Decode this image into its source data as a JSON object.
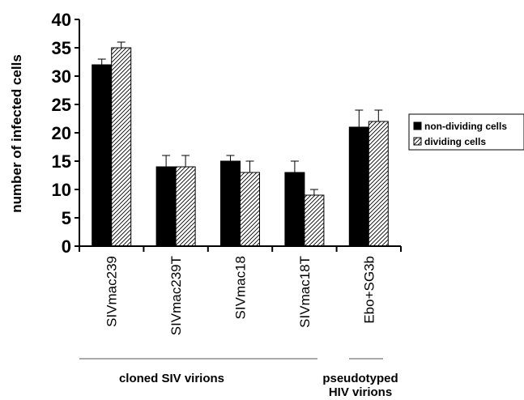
{
  "chart_data": {
    "type": "bar",
    "categories": [
      "SIVmac239",
      "SIVmac239T",
      "SIVmac18",
      "SIVmac18T",
      "Ebo+SG3b"
    ],
    "series": [
      {
        "name": "non-dividing cells",
        "values": [
          32,
          14,
          15,
          13,
          21
        ],
        "errors": [
          1,
          2,
          1,
          2,
          3
        ],
        "color": "#000000",
        "pattern": "solid"
      },
      {
        "name": "dividing cells",
        "values": [
          35,
          14,
          13,
          9,
          22
        ],
        "errors": [
          1,
          2,
          2,
          1,
          2
        ],
        "color": "#ffffff",
        "pattern": "diagonal-hatch"
      }
    ],
    "title": "",
    "xlabel": "",
    "ylabel": "number of infected cells",
    "ylim": [
      0,
      40
    ],
    "yticks": [
      "0",
      "5",
      "10",
      "15",
      "20",
      "25",
      "30",
      "35",
      "40"
    ],
    "grid": false,
    "legend": "right",
    "groups": [
      {
        "label": "cloned SIV virions",
        "categories": [
          "SIVmac239",
          "SIVmac239T",
          "SIVmac18",
          "SIVmac18T"
        ]
      },
      {
        "label_lines": [
          "pseudotyped",
          "HIV virions"
        ],
        "categories": [
          "Ebo+SG3b"
        ]
      }
    ]
  }
}
